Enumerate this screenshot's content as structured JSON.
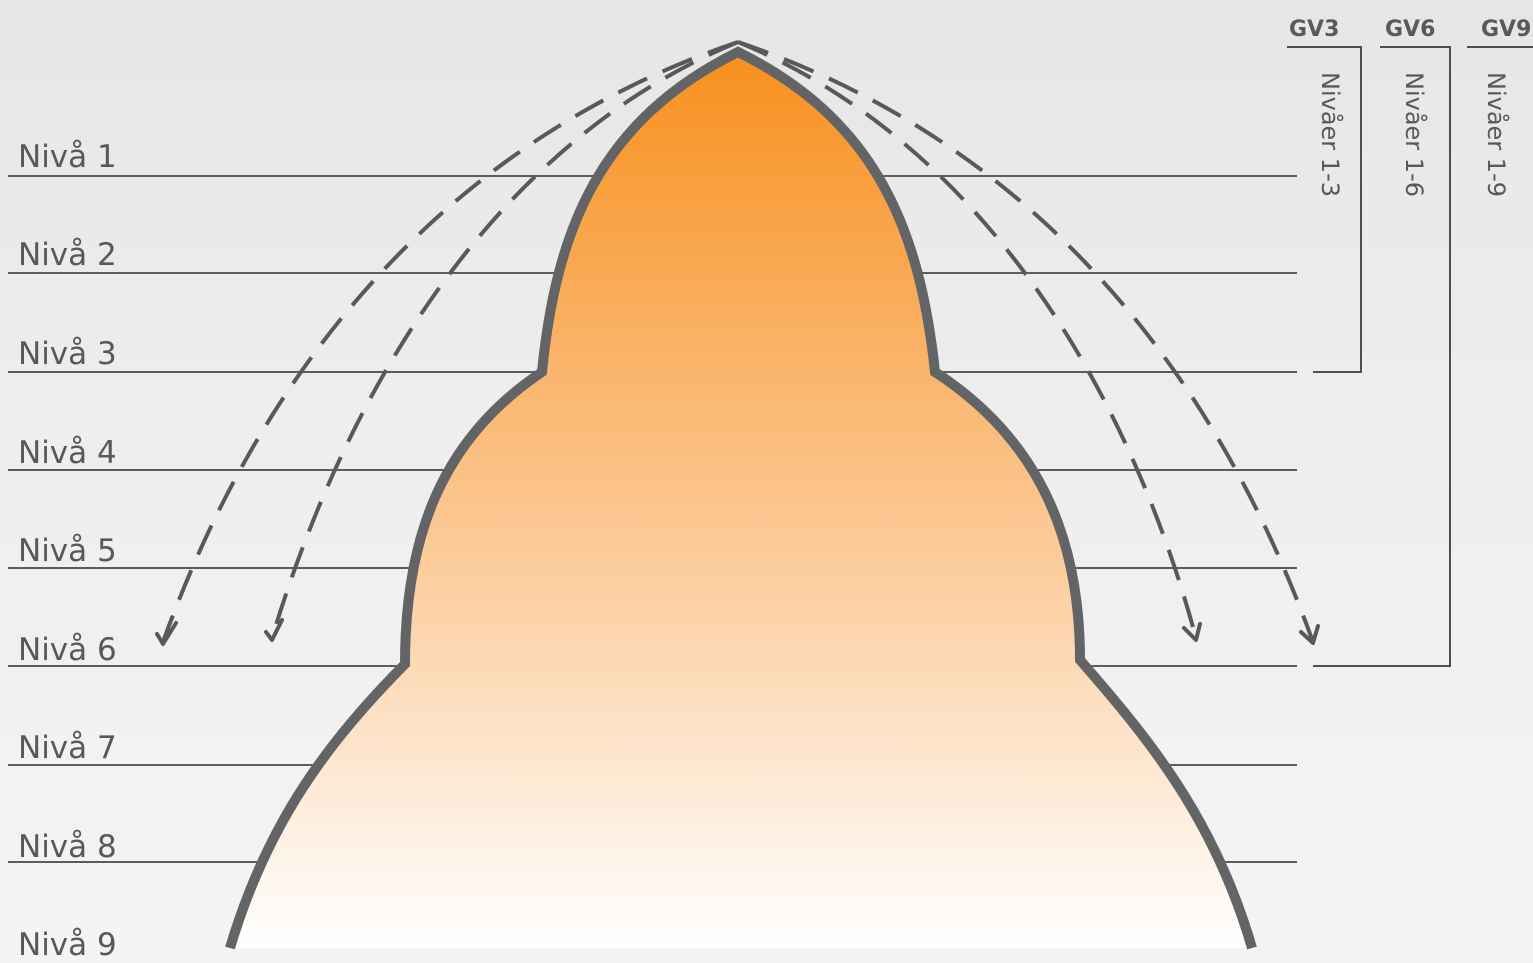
{
  "levels": [
    {
      "label": "Nivå 1"
    },
    {
      "label": "Nivå 2"
    },
    {
      "label": "Nivå 3"
    },
    {
      "label": "Nivå 4"
    },
    {
      "label": "Nivå 5"
    },
    {
      "label": "Nivå 6"
    },
    {
      "label": "Nivå 7"
    },
    {
      "label": "Nivå 8"
    },
    {
      "label": "Nivå 9"
    }
  ],
  "groups": [
    {
      "code": "GV3",
      "range": "Nivåer 1-3",
      "levels_to": 3
    },
    {
      "code": "GV6",
      "range": "Nivåer 1-6",
      "levels_to": 6
    },
    {
      "code": "GV9",
      "range": "Nivåer 1-9",
      "levels_to": 9
    }
  ],
  "colors": {
    "fill_top": "#f7901e",
    "fill_mid": "#fbc48c",
    "fill_bottom": "#ffffff",
    "outline": "#636466",
    "text": "#58595b"
  }
}
